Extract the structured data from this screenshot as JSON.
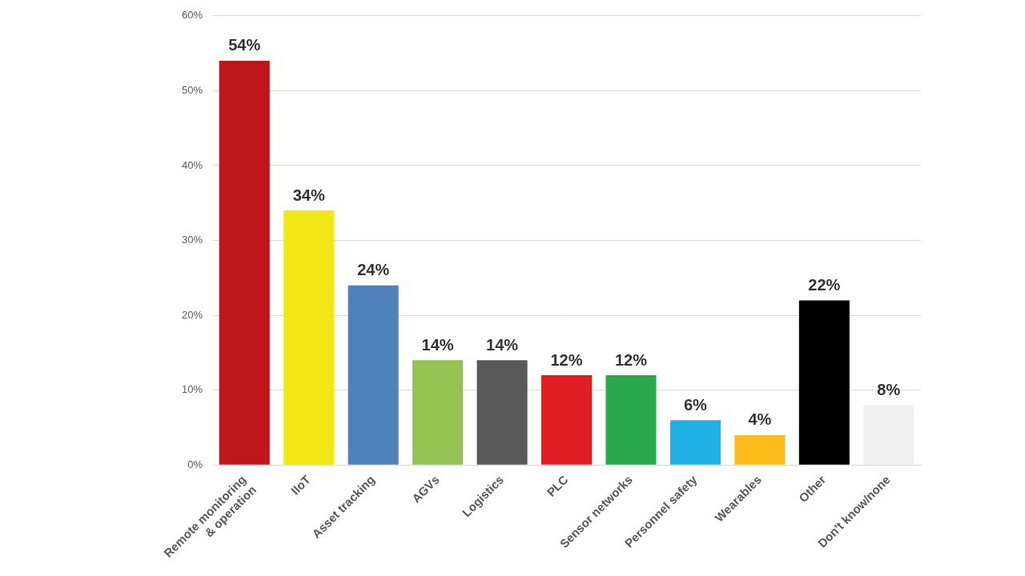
{
  "chart_data": {
    "type": "bar",
    "categories": [
      "Remote monitoring & operation",
      "IIoT",
      "Asset tracking",
      "AGVs",
      "Logistics",
      "PLC",
      "Sensor networks",
      "Personnel safety",
      "Wearables",
      "Other",
      "Don't know/none"
    ],
    "values": [
      54,
      34,
      24,
      14,
      14,
      12,
      12,
      6,
      4,
      22,
      8
    ],
    "value_labels": [
      "54%",
      "34%",
      "24%",
      "14%",
      "14%",
      "12%",
      "12%",
      "6%",
      "4%",
      "22%",
      "8%"
    ],
    "colors": [
      "#c0161a",
      "#f2e614",
      "#4f81bd",
      "#92c353",
      "#595959",
      "#e21c23",
      "#2aa84e",
      "#1fb0e6",
      "#fdbb1a",
      "#000000",
      "#f0f0f0"
    ],
    "ylim": [
      0,
      60
    ],
    "yticks": [
      {
        "value": 0,
        "label": "0%"
      },
      {
        "value": 10,
        "label": "10%"
      },
      {
        "value": 20,
        "label": "20%"
      },
      {
        "value": 30,
        "label": "30%"
      },
      {
        "value": 40,
        "label": "40%"
      },
      {
        "value": 50,
        "label": "50%"
      },
      {
        "value": 60,
        "label": "60%"
      }
    ],
    "grid": true,
    "data_labels": true
  }
}
